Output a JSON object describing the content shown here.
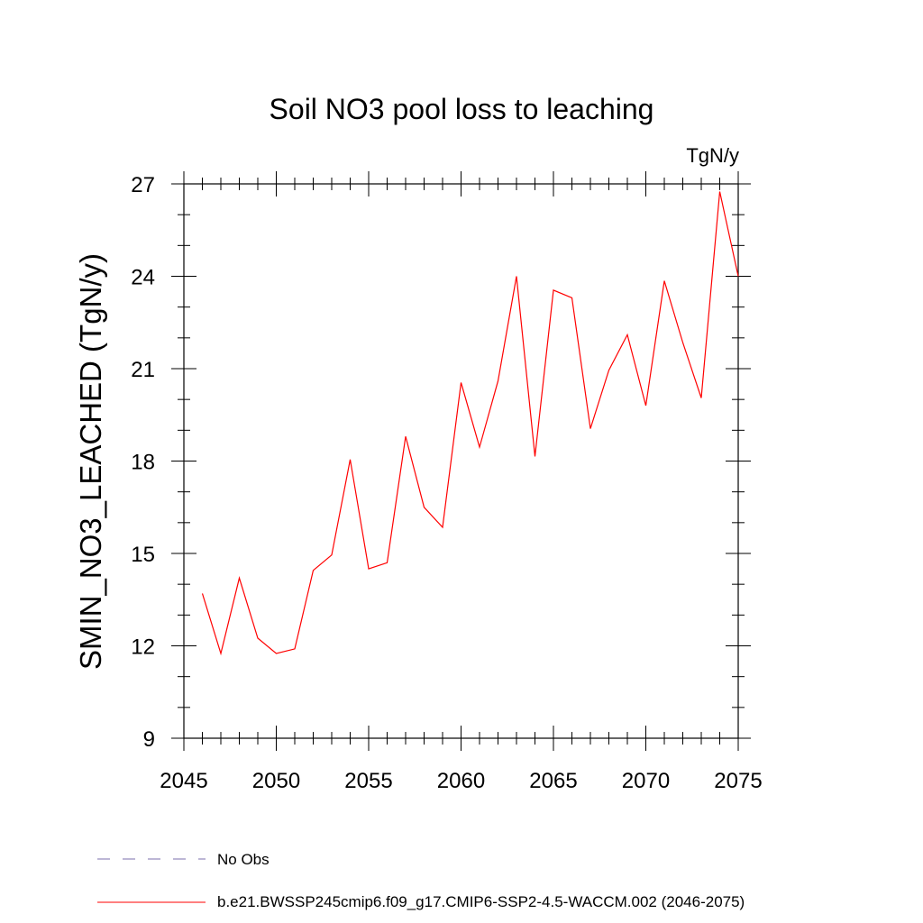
{
  "chart_data": {
    "type": "line",
    "title": "Soil NO3 pool loss to leaching",
    "units": "TgN/y",
    "xlabel": "",
    "ylabel": "SMIN_NO3_LEACHED  (TgN/y)",
    "xlim": [
      2045,
      2075
    ],
    "ylim": [
      9,
      27
    ],
    "xticks": [
      2045,
      2050,
      2055,
      2060,
      2065,
      2070,
      2075
    ],
    "yticks": [
      9,
      12,
      15,
      18,
      21,
      24,
      27
    ],
    "grid": false,
    "legend_position": "bottom",
    "series": [
      {
        "name": "b.e21.BWSSP245cmip6.f09_g17.CMIP6-SSP2-4.5-WACCM.002 (2046-2075)",
        "color": "#ff0000",
        "style": "solid",
        "x": [
          2046,
          2047,
          2048,
          2049,
          2050,
          2051,
          2052,
          2053,
          2054,
          2055,
          2056,
          2057,
          2058,
          2059,
          2060,
          2061,
          2062,
          2063,
          2064,
          2065,
          2066,
          2067,
          2068,
          2069,
          2070,
          2071,
          2072,
          2073,
          2074,
          2075
        ],
        "values": [
          13.7,
          11.75,
          14.2,
          12.25,
          11.75,
          11.9,
          14.45,
          14.95,
          18.05,
          14.5,
          14.7,
          18.8,
          16.5,
          15.85,
          20.55,
          18.45,
          20.6,
          24.0,
          18.15,
          23.55,
          23.3,
          19.05,
          20.95,
          22.1,
          19.8,
          23.85,
          21.85,
          20.05,
          26.75,
          24.0
        ]
      }
    ],
    "obs_legend": {
      "name": "No Obs",
      "color": "#7b6fae",
      "style": "dashed"
    }
  }
}
